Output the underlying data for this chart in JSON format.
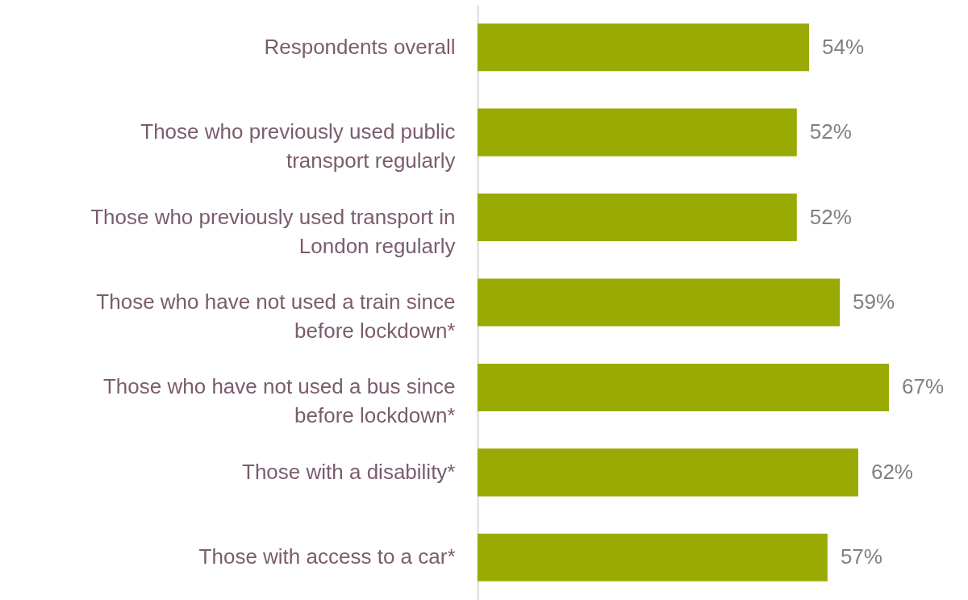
{
  "chart_data": {
    "type": "bar",
    "orientation": "horizontal",
    "categories": [
      "Respondents overall",
      "Those who previously used public transport regularly",
      "Those who previously used transport in London regularly",
      "Those who have not used a train since before lockdown*",
      "Those who have not used a bus since before lockdown*",
      "Those with a disability*",
      "Those with access to a car*"
    ],
    "values": [
      54,
      52,
      52,
      59,
      67,
      62,
      57
    ],
    "value_labels": [
      "54%",
      "52%",
      "52%",
      "59%",
      "67%",
      "62%",
      "57%"
    ],
    "color": "#9aaa05"
  }
}
